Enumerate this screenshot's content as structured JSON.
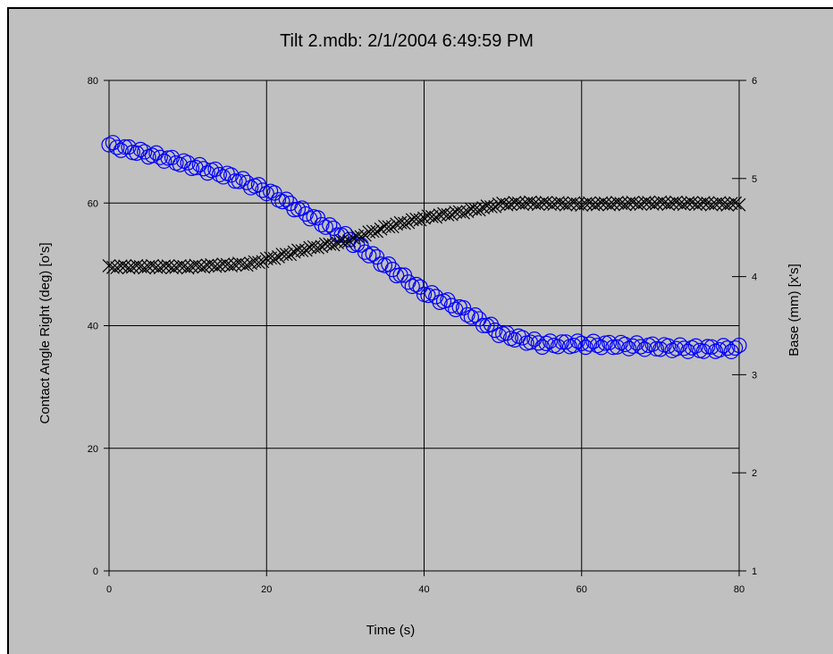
{
  "chart_data": {
    "type": "scatter",
    "title": "Tilt 2.mdb: 2/1/2004 6:49:59 PM",
    "xlabel": "Time (s)",
    "ylabel": "Contact Angle Right (deg) [o's]",
    "y2label": "Base (mm) [x's]",
    "xlim": [
      0,
      80
    ],
    "ylim": [
      0,
      80
    ],
    "y2lim": [
      1,
      6
    ],
    "x_ticks": [
      "0",
      "20",
      "40",
      "60",
      "80"
    ],
    "y_ticks": [
      "0",
      "20",
      "40",
      "60",
      "80"
    ],
    "y2_ticks": [
      "1",
      "2",
      "3",
      "4",
      "5",
      "6"
    ],
    "grid": true,
    "series": [
      {
        "name": "Contact Angle Right",
        "axis": "left",
        "marker": "circle",
        "color": "#0000ff",
        "anchors": [
          [
            0,
            69.5
          ],
          [
            5,
            68
          ],
          [
            10,
            66.3
          ],
          [
            15,
            64.5
          ],
          [
            20,
            62
          ],
          [
            25,
            58.3
          ],
          [
            30,
            54.5
          ],
          [
            35,
            50
          ],
          [
            40,
            45.5
          ],
          [
            45,
            42.5
          ],
          [
            50,
            38.5
          ],
          [
            55,
            37
          ],
          [
            60,
            37
          ],
          [
            65,
            36.8
          ],
          [
            70,
            36.5
          ],
          [
            75,
            36.2
          ],
          [
            80,
            36.3
          ]
        ]
      },
      {
        "name": "Base",
        "axis": "right",
        "marker": "x",
        "color": "#000000",
        "anchors": [
          [
            0,
            4.1
          ],
          [
            10,
            4.1
          ],
          [
            18,
            4.13
          ],
          [
            25,
            4.28
          ],
          [
            30,
            4.36
          ],
          [
            35,
            4.5
          ],
          [
            40,
            4.6
          ],
          [
            45,
            4.66
          ],
          [
            50,
            4.74
          ],
          [
            53,
            4.75
          ],
          [
            60,
            4.74
          ],
          [
            70,
            4.75
          ],
          [
            80,
            4.74
          ]
        ]
      }
    ]
  }
}
